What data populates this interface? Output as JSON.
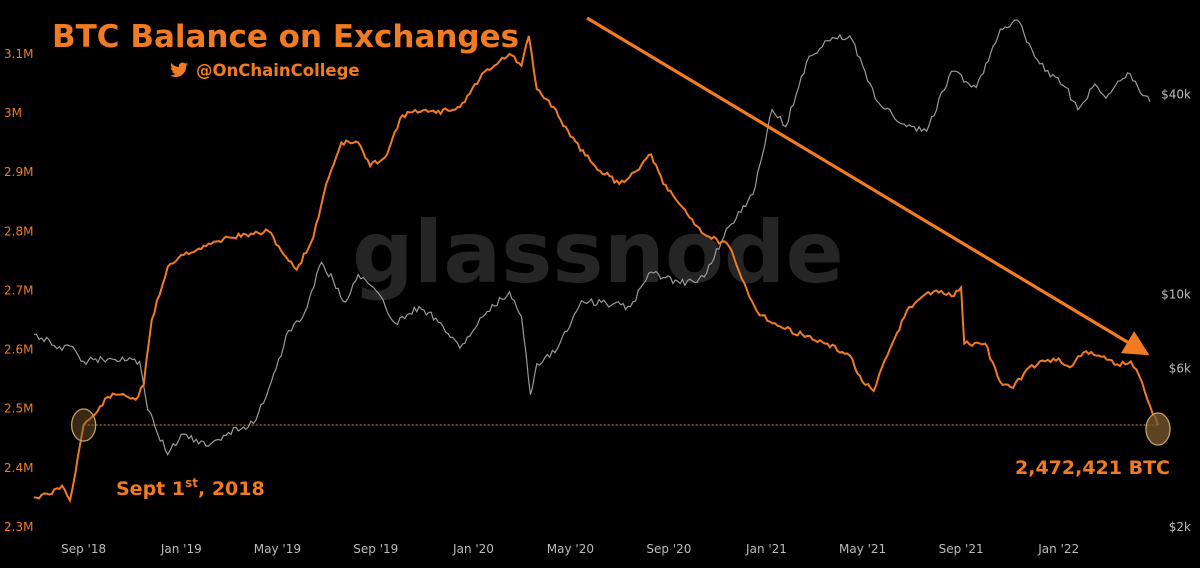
{
  "chart_data": {
    "type": "line",
    "title": "BTC Balance on Exchanges",
    "subtitle": "@OnChainCollege",
    "watermark": "glassnode",
    "colors": {
      "balance": "#F07B22",
      "price": "#9A9A9A",
      "background": "#000000",
      "arrow": "#F07B22"
    },
    "x_tick_labels": [
      "Sep '18",
      "Jan '19",
      "May '19",
      "Sep '19",
      "Jan '20",
      "May '20",
      "Sep '20",
      "Jan '21",
      "May '21",
      "Sep '21",
      "Jan '22"
    ],
    "left_axis": {
      "labels": [
        "3.1M",
        "3M",
        "2.9M",
        "2.8M",
        "2.7M",
        "2.6M",
        "2.5M",
        "2.4M",
        "2.3M"
      ],
      "range": [
        2300000,
        3120000
      ]
    },
    "right_axis": {
      "labels": [
        "$40k",
        "$10k",
        "$6k",
        "$2k"
      ],
      "log_scale": true
    },
    "series": [
      {
        "axis": "left",
        "points": [
          [
            "2018-07-01",
            2350000
          ],
          [
            "2018-07-20",
            2355000
          ],
          [
            "2018-08-05",
            2370000
          ],
          [
            "2018-08-15",
            2345000
          ],
          [
            "2018-08-25",
            2420000
          ],
          [
            "2018-09-01",
            2472421
          ],
          [
            "2018-09-15",
            2490000
          ],
          [
            "2018-10-01",
            2520000
          ],
          [
            "2018-10-20",
            2525000
          ],
          [
            "2018-11-05",
            2515000
          ],
          [
            "2018-11-15",
            2540000
          ],
          [
            "2018-11-25",
            2650000
          ],
          [
            "2018-12-15",
            2740000
          ],
          [
            "2019-01-01",
            2760000
          ],
          [
            "2019-02-01",
            2775000
          ],
          [
            "2019-03-01",
            2790000
          ],
          [
            "2019-04-01",
            2795000
          ],
          [
            "2019-04-20",
            2800000
          ],
          [
            "2019-05-15",
            2750000
          ],
          [
            "2019-05-25",
            2735000
          ],
          [
            "2019-06-15",
            2790000
          ],
          [
            "2019-07-01",
            2880000
          ],
          [
            "2019-07-20",
            2950000
          ],
          [
            "2019-08-10",
            2950000
          ],
          [
            "2019-08-25",
            2910000
          ],
          [
            "2019-09-15",
            2930000
          ],
          [
            "2019-10-01",
            2990000
          ],
          [
            "2019-10-20",
            3005000
          ],
          [
            "2019-11-15",
            3000000
          ],
          [
            "2019-12-15",
            3010000
          ],
          [
            "2020-01-15",
            3070000
          ],
          [
            "2020-02-15",
            3100000
          ],
          [
            "2020-03-01",
            3080000
          ],
          [
            "2020-03-10",
            3130000
          ],
          [
            "2020-03-20",
            3040000
          ],
          [
            "2020-04-10",
            3010000
          ],
          [
            "2020-05-01",
            2960000
          ],
          [
            "2020-06-01",
            2910000
          ],
          [
            "2020-07-01",
            2880000
          ],
          [
            "2020-07-20",
            2900000
          ],
          [
            "2020-08-10",
            2930000
          ],
          [
            "2020-08-25",
            2880000
          ],
          [
            "2020-09-15",
            2845000
          ],
          [
            "2020-10-15",
            2795000
          ],
          [
            "2020-11-15",
            2775000
          ],
          [
            "2020-12-01",
            2720000
          ],
          [
            "2020-12-20",
            2665000
          ],
          [
            "2021-01-15",
            2640000
          ],
          [
            "2021-02-15",
            2625000
          ],
          [
            "2021-03-15",
            2610000
          ],
          [
            "2021-04-15",
            2590000
          ],
          [
            "2021-05-01",
            2545000
          ],
          [
            "2021-05-15",
            2530000
          ],
          [
            "2021-06-01",
            2590000
          ],
          [
            "2021-06-25",
            2665000
          ],
          [
            "2021-07-15",
            2690000
          ],
          [
            "2021-08-01",
            2700000
          ],
          [
            "2021-08-20",
            2690000
          ],
          [
            "2021-09-01",
            2705000
          ],
          [
            "2021-09-05",
            2610000
          ],
          [
            "2021-10-01",
            2610000
          ],
          [
            "2021-10-20",
            2545000
          ],
          [
            "2021-11-05",
            2535000
          ],
          [
            "2021-11-25",
            2570000
          ],
          [
            "2021-12-15",
            2580000
          ],
          [
            "2022-01-01",
            2585000
          ],
          [
            "2022-01-15",
            2570000
          ],
          [
            "2022-02-01",
            2595000
          ],
          [
            "2022-02-20",
            2590000
          ],
          [
            "2022-03-15",
            2575000
          ],
          [
            "2022-04-01",
            2580000
          ],
          [
            "2022-04-15",
            2545000
          ],
          [
            "2022-04-25",
            2505000
          ],
          [
            "2022-05-05",
            2472421
          ]
        ]
      },
      {
        "axis": "right",
        "points": [
          [
            "2018-07-01",
            7600
          ],
          [
            "2018-07-20",
            7300
          ],
          [
            "2018-08-05",
            6800
          ],
          [
            "2018-08-15",
            7000
          ],
          [
            "2018-09-01",
            6300
          ],
          [
            "2018-10-01",
            6400
          ],
          [
            "2018-11-10",
            6300
          ],
          [
            "2018-11-20",
            4500
          ],
          [
            "2018-12-15",
            3300
          ],
          [
            "2019-01-01",
            3800
          ],
          [
            "2019-02-01",
            3500
          ],
          [
            "2019-03-01",
            3850
          ],
          [
            "2019-04-01",
            4100
          ],
          [
            "2019-04-20",
            5200
          ],
          [
            "2019-05-15",
            7800
          ],
          [
            "2019-06-01",
            8500
          ],
          [
            "2019-06-25",
            12500
          ],
          [
            "2019-07-10",
            11000
          ],
          [
            "2019-07-25",
            9500
          ],
          [
            "2019-08-10",
            11500
          ],
          [
            "2019-09-01",
            10300
          ],
          [
            "2019-09-25",
            8200
          ],
          [
            "2019-10-25",
            9200
          ],
          [
            "2019-11-15",
            8500
          ],
          [
            "2019-12-15",
            6900
          ],
          [
            "2020-01-15",
            8700
          ],
          [
            "2020-02-15",
            10200
          ],
          [
            "2020-03-01",
            8600
          ],
          [
            "2020-03-12",
            5000
          ],
          [
            "2020-03-20",
            6200
          ],
          [
            "2020-04-15",
            6900
          ],
          [
            "2020-05-15",
            9600
          ],
          [
            "2020-06-15",
            9400
          ],
          [
            "2020-07-15",
            9200
          ],
          [
            "2020-08-10",
            11700
          ],
          [
            "2020-09-15",
            10800
          ],
          [
            "2020-10-15",
            11300
          ],
          [
            "2020-11-15",
            16000
          ],
          [
            "2020-12-15",
            20000
          ],
          [
            "2021-01-08",
            36000
          ],
          [
            "2021-01-25",
            32000
          ],
          [
            "2021-02-20",
            50000
          ],
          [
            "2021-03-15",
            58000
          ],
          [
            "2021-04-15",
            60000
          ],
          [
            "2021-05-20",
            38000
          ],
          [
            "2021-06-25",
            32000
          ],
          [
            "2021-07-20",
            31000
          ],
          [
            "2021-08-20",
            47000
          ],
          [
            "2021-09-20",
            42000
          ],
          [
            "2021-10-20",
            63000
          ],
          [
            "2021-11-10",
            67000
          ],
          [
            "2021-11-25",
            57000
          ],
          [
            "2021-12-15",
            47000
          ],
          [
            "2022-01-10",
            42000
          ],
          [
            "2022-01-25",
            36000
          ],
          [
            "2022-02-15",
            43000
          ],
          [
            "2022-03-01",
            39000
          ],
          [
            "2022-03-28",
            46500
          ],
          [
            "2022-04-10",
            42000
          ],
          [
            "2022-04-25",
            38000
          ]
        ]
      }
    ],
    "annotations": {
      "start_label": "Sept 1",
      "start_label_sup": "st",
      "start_label_year": ", 2018",
      "end_label": "2,472,421 BTC",
      "reference_value": 2472421
    }
  }
}
